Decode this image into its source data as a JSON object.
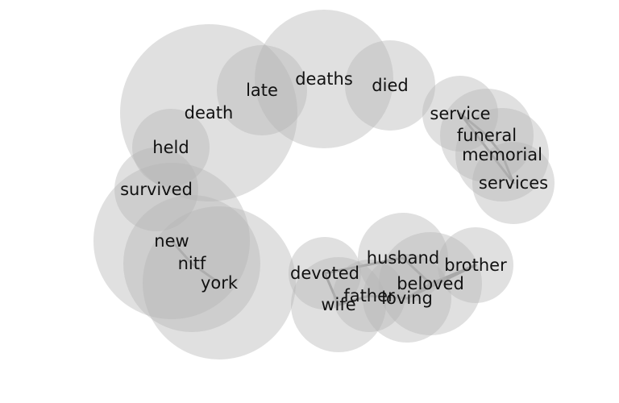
{
  "nodes": [
    {
      "id": "death",
      "label": "death",
      "size": 110
    },
    {
      "id": "deaths",
      "label": "deaths",
      "size": 86
    },
    {
      "id": "late",
      "label": "late",
      "size": 56
    },
    {
      "id": "died",
      "label": "died",
      "size": 56
    },
    {
      "id": "held",
      "label": "held",
      "size": 48
    },
    {
      "id": "survived",
      "label": "survived",
      "size": 52
    },
    {
      "id": "service",
      "label": "service",
      "size": 47
    },
    {
      "id": "funeral",
      "label": "funeral",
      "size": 58
    },
    {
      "id": "memorial",
      "label": "memorial",
      "size": 58
    },
    {
      "id": "services",
      "label": "services",
      "size": 51
    },
    {
      "id": "new",
      "label": "new",
      "size": 97
    },
    {
      "id": "nitf",
      "label": "nitf",
      "size": 85
    },
    {
      "id": "york",
      "label": "york",
      "size": 95
    },
    {
      "id": "devoted",
      "label": "devoted",
      "size": 45
    },
    {
      "id": "wife",
      "label": "wife",
      "size": 59
    },
    {
      "id": "father",
      "label": "father",
      "size": 45
    },
    {
      "id": "husband",
      "label": "husband",
      "size": 56
    },
    {
      "id": "loving",
      "label": "loving",
      "size": 55
    },
    {
      "id": "beloved",
      "label": "beloved",
      "size": 64
    },
    {
      "id": "brother",
      "label": "brother",
      "size": 47
    }
  ],
  "edges": [
    [
      "service",
      "funeral"
    ],
    [
      "funeral",
      "memorial"
    ],
    [
      "memorial",
      "services"
    ],
    [
      "service",
      "services"
    ],
    [
      "new",
      "nitf"
    ],
    [
      "nitf",
      "york"
    ],
    [
      "devoted",
      "wife"
    ],
    [
      "devoted",
      "husband"
    ],
    [
      "wife",
      "father"
    ],
    [
      "father",
      "loving"
    ],
    [
      "loving",
      "beloved"
    ],
    [
      "beloved",
      "brother"
    ],
    [
      "husband",
      "beloved"
    ],
    [
      "loving",
      "brother"
    ]
  ]
}
